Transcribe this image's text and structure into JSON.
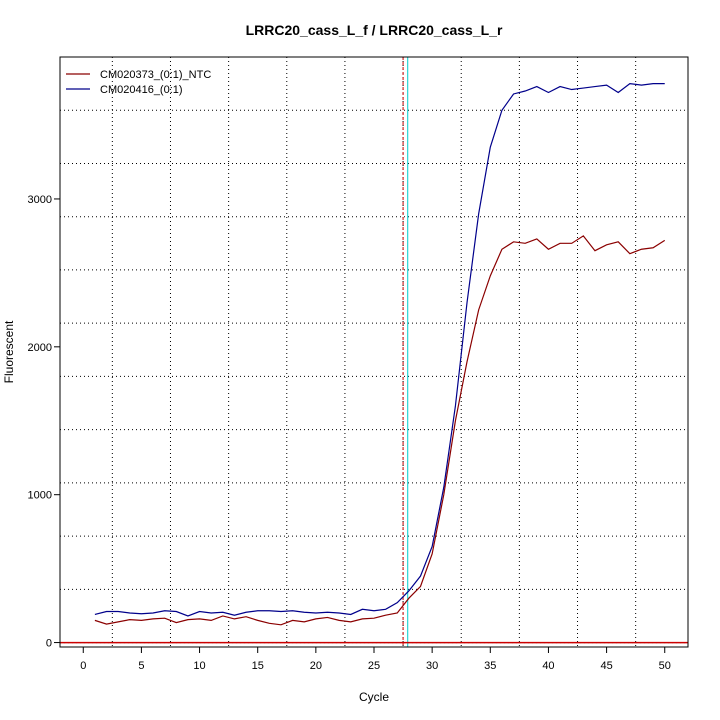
{
  "chart_data": {
    "type": "line",
    "title": "LRRC20_cass_L_f / LRRC20_cass_L_r",
    "xlabel": "Cycle",
    "ylabel": "Fluorescent",
    "xlim": [
      -2,
      52
    ],
    "ylim": [
      -30,
      3960
    ],
    "x_ticks": [
      0,
      5,
      10,
      15,
      20,
      25,
      30,
      35,
      40,
      45,
      50
    ],
    "y_ticks": [
      0,
      1000,
      2000,
      3000
    ],
    "x_grid_major": [
      2.5,
      7.5,
      12.5,
      17.5,
      22.5,
      27.5,
      32.5,
      37.5,
      42.5,
      47.5
    ],
    "y_grid_major": [
      0,
      360,
      720,
      1080,
      1440,
      1800,
      2160,
      2520,
      2880,
      3240,
      3600
    ],
    "grid": true,
    "legend_position": "top-left",
    "series": [
      {
        "name": "CM020373_(0:1)_NTC",
        "color": "#8b0000",
        "x": [
          1,
          2,
          3,
          4,
          5,
          6,
          7,
          8,
          9,
          10,
          11,
          12,
          13,
          14,
          15,
          16,
          17,
          18,
          19,
          20,
          21,
          22,
          23,
          24,
          25,
          26,
          27,
          28,
          29,
          30,
          31,
          32,
          33,
          34,
          35,
          36,
          37,
          38,
          39,
          40,
          41,
          42,
          43,
          44,
          45,
          46,
          47,
          48,
          49,
          50
        ],
        "y": [
          150,
          125,
          140,
          155,
          150,
          160,
          165,
          135,
          155,
          160,
          150,
          180,
          160,
          175,
          150,
          130,
          120,
          150,
          140,
          160,
          170,
          150,
          140,
          160,
          165,
          185,
          200,
          300,
          380,
          600,
          1000,
          1500,
          1900,
          2250,
          2480,
          2660,
          2710,
          2700,
          2730,
          2660,
          2700,
          2700,
          2750,
          2650,
          2690,
          2710,
          2630,
          2660,
          2670,
          2720
        ]
      },
      {
        "name": "CM020416_(0:1)",
        "color": "#00008b",
        "x": [
          1,
          2,
          3,
          4,
          5,
          6,
          7,
          8,
          9,
          10,
          11,
          12,
          13,
          14,
          15,
          16,
          17,
          18,
          19,
          20,
          21,
          22,
          23,
          24,
          25,
          26,
          27,
          28,
          29,
          30,
          31,
          32,
          33,
          34,
          35,
          36,
          37,
          38,
          39,
          40,
          41,
          42,
          43,
          44,
          45,
          46,
          47,
          48,
          49,
          50
        ],
        "y": [
          190,
          210,
          210,
          200,
          195,
          200,
          215,
          210,
          180,
          210,
          200,
          205,
          185,
          205,
          215,
          215,
          210,
          215,
          205,
          200,
          205,
          200,
          190,
          225,
          215,
          225,
          270,
          350,
          450,
          650,
          1050,
          1600,
          2300,
          2900,
          3350,
          3600,
          3710,
          3730,
          3760,
          3720,
          3760,
          3740,
          3750,
          3760,
          3770,
          3720,
          3780,
          3770,
          3780,
          3780
        ]
      }
    ],
    "thresholds": [
      {
        "axis": "x",
        "value": 27.5,
        "color": "#cc0000",
        "style": "dashed"
      },
      {
        "axis": "x",
        "value": 27.9,
        "color": "#00cccc",
        "style": "solid"
      },
      {
        "axis": "y",
        "value": 0,
        "color": "#cc0000",
        "style": "solid"
      }
    ]
  }
}
